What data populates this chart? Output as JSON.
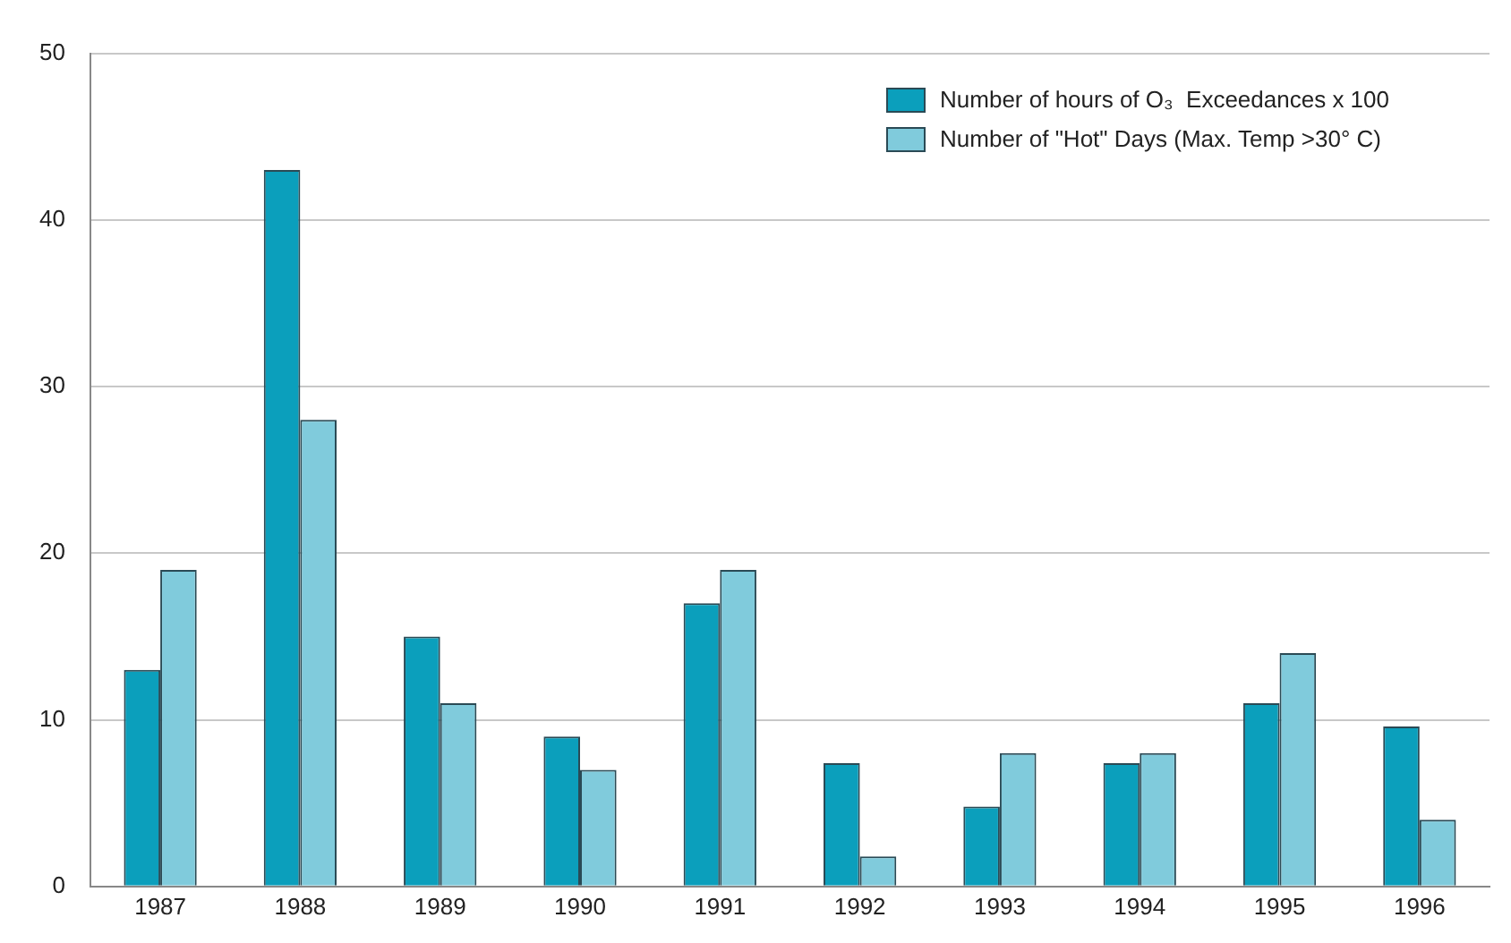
{
  "chart_data": {
    "type": "bar",
    "categories": [
      "1987",
      "1988",
      "1989",
      "1990",
      "1991",
      "1992",
      "1993",
      "1994",
      "1995",
      "1996"
    ],
    "series": [
      {
        "name": "Number of hours of O₃  Exceedances x 100",
        "color": "#0b9fbc",
        "values": [
          13,
          43,
          15,
          9,
          17,
          7.4,
          4.8,
          7.4,
          11,
          9.6
        ]
      },
      {
        "name": "Number of \"Hot\" Days (Max. Temp >30° C)",
        "color": "#80cbdc",
        "values": [
          19,
          28,
          11,
          7,
          19,
          1.8,
          8,
          8,
          14,
          4
        ]
      }
    ],
    "ylim": [
      0,
      50
    ],
    "yticks": [
      0,
      10,
      20,
      30,
      40,
      50
    ],
    "grid": "y",
    "legend": "top right"
  }
}
